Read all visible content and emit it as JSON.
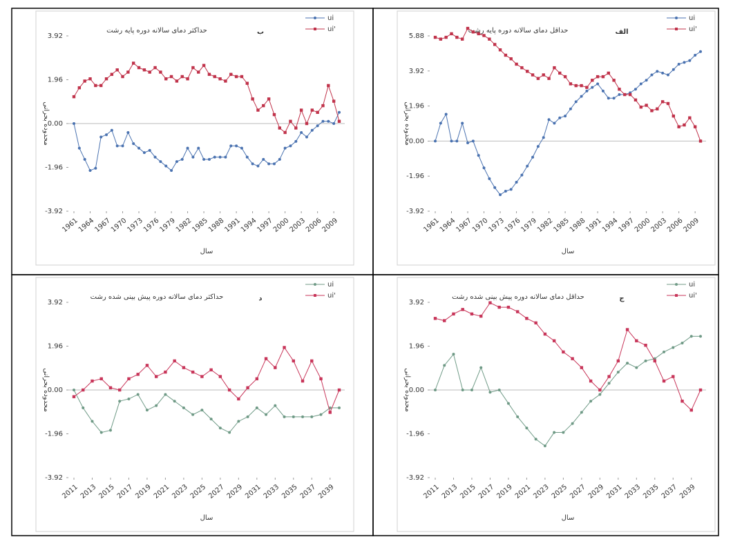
{
  "chart_data": [
    {
      "type": "line",
      "title": "حداکثر دمای سالانه دوره پایه رشت",
      "panel": "ب",
      "xlabel": "سال",
      "ylabel": "محدوده بحرانی",
      "x": [
        1961,
        1962,
        1963,
        1964,
        1965,
        1966,
        1967,
        1968,
        1969,
        1970,
        1971,
        1972,
        1973,
        1974,
        1975,
        1976,
        1977,
        1978,
        1979,
        1980,
        1981,
        1982,
        1983,
        1984,
        1985,
        1986,
        1987,
        1988,
        1989,
        1990,
        1991,
        1992,
        1993,
        1994,
        1995,
        1996,
        1997,
        1998,
        1999,
        2000,
        2001,
        2002,
        2003,
        2004,
        2005,
        2006,
        2007,
        2008,
        2009,
        2010
      ],
      "xlim": [
        1961,
        2010
      ],
      "xticks": [
        1961,
        1964,
        1967,
        1970,
        1973,
        1976,
        1979,
        1982,
        1985,
        1988,
        1991,
        1994,
        1997,
        2000,
        2003,
        2006,
        2009
      ],
      "ylim": [
        -3.92,
        3.92
      ],
      "yticks": [
        -3.92,
        -1.96,
        {
          "value": 0,
          "label": "0.00"
        },
        1.96,
        3.92
      ],
      "legend": "top-right",
      "series": [
        {
          "name": "ui",
          "color": "#4a72b0",
          "values": [
            0.0,
            -1.1,
            -1.6,
            -2.1,
            -2.0,
            -0.6,
            -0.5,
            -0.3,
            -1.0,
            -1.0,
            -0.4,
            -0.9,
            -1.1,
            -1.3,
            -1.2,
            -1.5,
            -1.7,
            -1.9,
            -2.1,
            -1.7,
            -1.6,
            -1.1,
            -1.5,
            -1.1,
            -1.6,
            -1.6,
            -1.5,
            -1.5,
            -1.5,
            -1.0,
            -1.0,
            -1.1,
            -1.5,
            -1.8,
            -1.9,
            -1.6,
            -1.8,
            -1.8,
            -1.6,
            -1.1,
            -1.0,
            -0.8,
            -0.4,
            -0.6,
            -0.3,
            -0.1,
            0.1,
            0.1,
            0.0,
            0.5
          ]
        },
        {
          "name": "ui'",
          "color": "#c0324a",
          "values": [
            1.2,
            1.6,
            1.9,
            2.0,
            1.7,
            1.7,
            2.0,
            2.2,
            2.4,
            2.1,
            2.3,
            2.7,
            2.5,
            2.4,
            2.3,
            2.5,
            2.3,
            2.0,
            2.1,
            1.9,
            2.1,
            2.0,
            2.5,
            2.3,
            2.6,
            2.2,
            2.1,
            2.0,
            1.9,
            2.2,
            2.1,
            2.1,
            1.8,
            1.1,
            0.6,
            0.8,
            1.1,
            0.4,
            -0.2,
            -0.4,
            0.1,
            -0.2,
            0.6,
            0.0,
            0.6,
            0.5,
            0.8,
            1.7,
            1.0,
            0.1
          ]
        }
      ]
    },
    {
      "type": "line",
      "title": "حداقل دمای سالانه دوره پایه رشت",
      "panel": "الف",
      "xlabel": "سال",
      "ylabel": "محدوده بحرانی",
      "x": [
        1961,
        1962,
        1963,
        1964,
        1965,
        1966,
        1967,
        1968,
        1969,
        1970,
        1971,
        1972,
        1973,
        1974,
        1975,
        1976,
        1977,
        1978,
        1979,
        1980,
        1981,
        1982,
        1983,
        1984,
        1985,
        1986,
        1987,
        1988,
        1989,
        1990,
        1991,
        1992,
        1993,
        1994,
        1995,
        1996,
        1997,
        1998,
        1999,
        2000,
        2001,
        2002,
        2003,
        2004,
        2005,
        2006,
        2007,
        2008,
        2009,
        2010
      ],
      "xlim": [
        1961,
        2010
      ],
      "xticks": [
        1961,
        1964,
        1967,
        1970,
        1973,
        1976,
        1979,
        1982,
        1985,
        1988,
        1991,
        1994,
        1997,
        2000,
        2003,
        2006,
        2009
      ],
      "ylim": [
        -3.92,
        5.88
      ],
      "yticks": [
        -3.92,
        -1.96,
        {
          "value": 0,
          "label": "0.00"
        },
        1.96,
        3.92,
        5.88
      ],
      "legend": "top-right",
      "series": [
        {
          "name": "ui",
          "color": "#4a72b0",
          "values": [
            0.0,
            1.0,
            1.5,
            0.0,
            0.0,
            1.0,
            -0.1,
            0.0,
            -0.8,
            -1.5,
            -2.1,
            -2.6,
            -3.0,
            -2.8,
            -2.7,
            -2.3,
            -1.9,
            -1.4,
            -0.9,
            -0.3,
            0.2,
            1.2,
            1.0,
            1.3,
            1.4,
            1.8,
            2.2,
            2.5,
            2.8,
            3.0,
            3.2,
            2.8,
            2.4,
            2.4,
            2.6,
            2.6,
            2.7,
            2.9,
            3.2,
            3.4,
            3.7,
            3.9,
            3.8,
            3.7,
            4.0,
            4.3,
            4.4,
            4.5,
            4.8,
            5.0
          ]
        },
        {
          "name": "ui'",
          "color": "#c0324a",
          "values": [
            5.8,
            5.7,
            5.8,
            6.0,
            5.8,
            5.7,
            6.3,
            6.1,
            6.0,
            5.9,
            5.7,
            5.4,
            5.1,
            4.8,
            4.6,
            4.3,
            4.1,
            3.9,
            3.7,
            3.5,
            3.7,
            3.5,
            4.1,
            3.8,
            3.6,
            3.2,
            3.1,
            3.1,
            3.0,
            3.4,
            3.6,
            3.6,
            3.8,
            3.4,
            2.9,
            2.6,
            2.6,
            2.3,
            1.9,
            2.0,
            1.7,
            1.8,
            2.2,
            2.1,
            1.4,
            0.8,
            0.9,
            1.3,
            0.8,
            0.0
          ]
        }
      ]
    },
    {
      "type": "line",
      "title": "حداکثر دمای سالانه دوره پیش بینی شده رشت",
      "panel": "د",
      "xlabel": "سال",
      "ylabel": "محدوده بحرانی",
      "x": [
        2011,
        2012,
        2013,
        2014,
        2015,
        2016,
        2017,
        2018,
        2019,
        2020,
        2021,
        2022,
        2023,
        2024,
        2025,
        2026,
        2027,
        2028,
        2029,
        2030,
        2031,
        2032,
        2033,
        2034,
        2035,
        2036,
        2037,
        2038,
        2039,
        2040
      ],
      "xlim": [
        2011,
        2040
      ],
      "xticks": [
        2011,
        2013,
        2015,
        2017,
        2019,
        2021,
        2023,
        2025,
        2027,
        2029,
        2031,
        2033,
        2035,
        2037,
        2039
      ],
      "ylim": [
        -3.92,
        3.92
      ],
      "yticks": [
        -3.92,
        -1.96,
        {
          "value": 0,
          "label": "0.00"
        },
        1.96,
        3.92
      ],
      "legend": "top-right",
      "series": [
        {
          "name": "ui",
          "color": "#6f9a86",
          "values": [
            0.0,
            -0.8,
            -1.4,
            -1.9,
            -1.8,
            -0.5,
            -0.4,
            -0.2,
            -0.9,
            -0.7,
            -0.2,
            -0.5,
            -0.8,
            -1.1,
            -0.9,
            -1.3,
            -1.7,
            -1.9,
            -1.4,
            -1.2,
            -0.8,
            -1.1,
            -0.7,
            -1.2,
            -1.2,
            -1.2,
            -1.2,
            -1.1,
            -0.8,
            -0.8
          ]
        },
        {
          "name": "ui'",
          "color": "#c8365a",
          "values": [
            -0.3,
            0.0,
            0.4,
            0.5,
            0.1,
            0.0,
            0.5,
            0.7,
            1.1,
            0.6,
            0.8,
            1.3,
            1.0,
            0.8,
            0.6,
            0.9,
            0.6,
            0.0,
            -0.4,
            0.1,
            0.5,
            1.4,
            1.0,
            1.9,
            1.3,
            0.4,
            1.3,
            0.5,
            -1.0,
            0.0
          ]
        }
      ]
    },
    {
      "type": "line",
      "title": "حداقل دمای سالانه دوره پیش بینی شده رشت",
      "panel": "ج",
      "xlabel": "سال",
      "ylabel": "محدوده بحرانی",
      "x": [
        2011,
        2012,
        2013,
        2014,
        2015,
        2016,
        2017,
        2018,
        2019,
        2020,
        2021,
        2022,
        2023,
        2024,
        2025,
        2026,
        2027,
        2028,
        2029,
        2030,
        2031,
        2032,
        2033,
        2034,
        2035,
        2036,
        2037,
        2038,
        2039,
        2040
      ],
      "xlim": [
        2011,
        2040
      ],
      "xticks": [
        2011,
        2013,
        2015,
        2017,
        2019,
        2021,
        2023,
        2025,
        2027,
        2029,
        2031,
        2033,
        2035,
        2037,
        2039
      ],
      "ylim": [
        -3.92,
        3.92
      ],
      "yticks": [
        -3.92,
        -1.96,
        {
          "value": 0,
          "label": "0.00"
        },
        1.96,
        3.92
      ],
      "legend": "top-right",
      "series": [
        {
          "name": "ui",
          "color": "#6f9a86",
          "values": [
            0.0,
            1.1,
            1.6,
            0.0,
            0.0,
            1.0,
            -0.1,
            0.0,
            -0.6,
            -1.2,
            -1.7,
            -2.2,
            -2.5,
            -1.9,
            -1.9,
            -1.5,
            -1.0,
            -0.5,
            -0.2,
            0.3,
            0.8,
            1.2,
            1.0,
            1.3,
            1.4,
            1.7,
            1.9,
            2.1,
            2.4,
            2.4
          ]
        },
        {
          "name": "ui'",
          "color": "#c8365a",
          "values": [
            3.2,
            3.1,
            3.4,
            3.6,
            3.4,
            3.3,
            3.9,
            3.7,
            3.7,
            3.5,
            3.2,
            3.0,
            2.5,
            2.2,
            1.7,
            1.4,
            1.0,
            0.4,
            0.0,
            0.6,
            1.3,
            2.7,
            2.2,
            2.0,
            1.3,
            0.4,
            0.6,
            -0.5,
            -0.9,
            0.0
          ]
        }
      ]
    }
  ]
}
